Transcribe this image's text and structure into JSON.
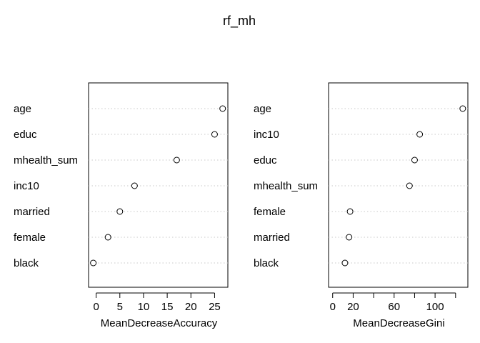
{
  "chart_data": {
    "type": "scatter",
    "title": "rf_mh",
    "panels": [
      {
        "xlabel": "MeanDecreaseAccuracy",
        "categories": [
          "age",
          "educ",
          "mhealth_sum",
          "inc10",
          "married",
          "female",
          "black"
        ],
        "values": [
          26.7,
          25.0,
          17.0,
          8.1,
          5.0,
          2.5,
          -0.6
        ],
        "xlim": [
          -1.6,
          27.8
        ],
        "ticks": [
          0,
          5,
          10,
          15,
          20,
          25
        ],
        "tick_labels": [
          "0",
          "5",
          "10",
          "15",
          "20",
          "25"
        ]
      },
      {
        "xlabel": "MeanDecreaseGini",
        "categories": [
          "age",
          "inc10",
          "educ",
          "mhealth_sum",
          "female",
          "married",
          "black"
        ],
        "values": [
          127,
          85,
          80,
          75,
          17,
          16,
          12
        ],
        "xlim": [
          -4,
          132
        ],
        "ticks": [
          0,
          20,
          40,
          60,
          80,
          100,
          120
        ],
        "tick_labels": [
          "0",
          "20",
          "",
          "60",
          "",
          "100",
          ""
        ]
      }
    ]
  }
}
